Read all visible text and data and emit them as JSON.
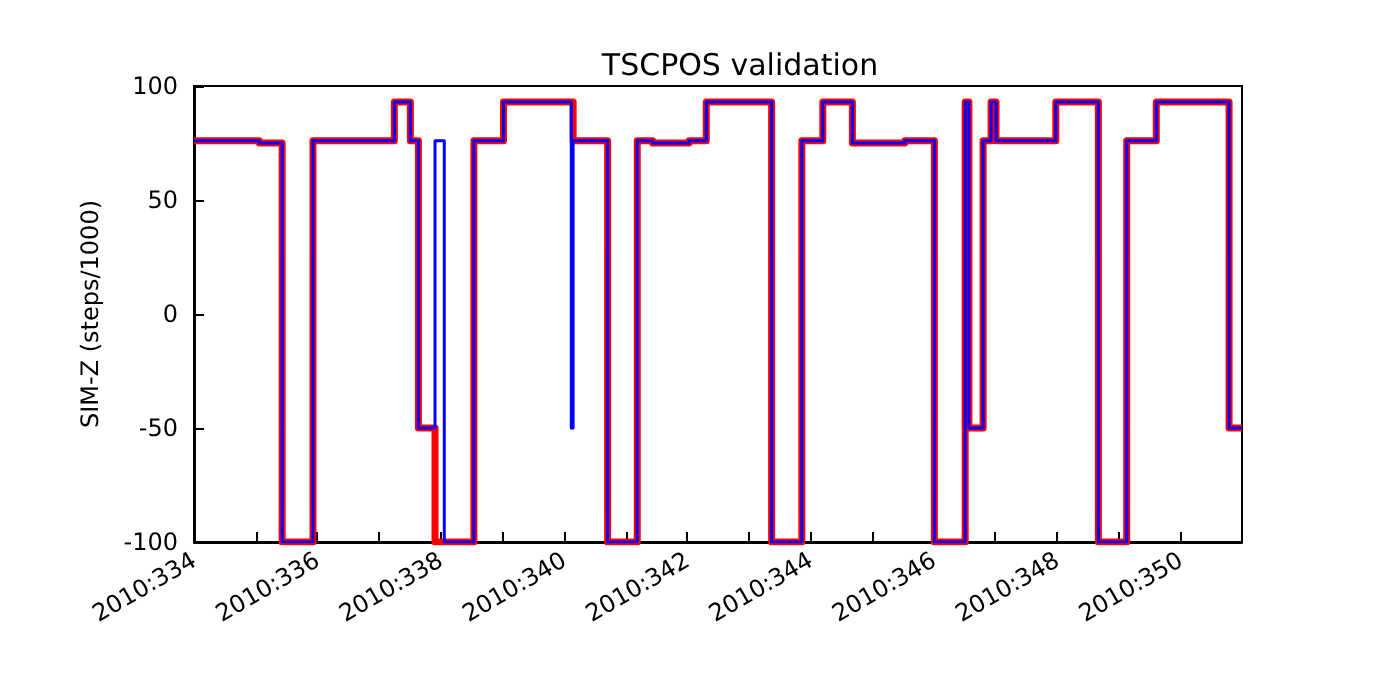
{
  "chart_data": {
    "type": "step",
    "title": "TSCPOS validation",
    "ylabel": "SIM-Z (steps/1000)",
    "xlim": [
      "2010-11-30",
      "2010-12-17"
    ],
    "ylim": [
      -100,
      100
    ],
    "xticks": [
      {
        "value": "2010-11-30",
        "label": "2010:334"
      },
      {
        "value": "2010-12-01",
        "label": null
      },
      {
        "value": "2010-12-02",
        "label": "2010:336"
      },
      {
        "value": "2010-12-03",
        "label": null
      },
      {
        "value": "2010-12-04",
        "label": "2010:338"
      },
      {
        "value": "2010-12-05",
        "label": null
      },
      {
        "value": "2010-12-06",
        "label": "2010:340"
      },
      {
        "value": "2010-12-07",
        "label": null
      },
      {
        "value": "2010-12-08",
        "label": "2010:342"
      },
      {
        "value": "2010-12-09",
        "label": null
      },
      {
        "value": "2010-12-10",
        "label": "2010:344"
      },
      {
        "value": "2010-12-11",
        "label": null
      },
      {
        "value": "2010-12-12",
        "label": "2010:346"
      },
      {
        "value": "2010-12-13",
        "label": null
      },
      {
        "value": "2010-12-14",
        "label": "2010:348"
      },
      {
        "value": "2010-12-15",
        "label": null
      },
      {
        "value": "2010-12-16",
        "label": "2010:350"
      }
    ],
    "yticks": [
      -100,
      -50,
      0,
      50,
      100
    ],
    "grid": false,
    "series": [
      {
        "color": "#ff0000",
        "x": [
          "2010-11-30T00:00",
          "2010-12-01T01:26",
          "2010-12-01T10:19",
          "2010-12-01T22:19",
          "2010-12-03T06:00",
          "2010-12-03T12:14",
          "2010-12-03T15:22",
          "2010-12-03T21:50",
          "2010-12-04T12:58",
          "2010-12-05T00:29",
          "2010-12-06T03:36",
          "2010-12-06T17:02",
          "2010-12-07T04:34",
          "2010-12-07T10:34",
          "2010-12-08T00:43",
          "2010-12-08T07:26",
          "2010-12-09T08:53",
          "2010-12-09T20:38",
          "2010-12-10T04:48",
          "2010-12-10T16:19",
          "2010-12-11T12:43",
          "2010-12-12T00:14",
          "2010-12-12T12:14",
          "2010-12-12T13:41",
          "2010-12-12T19:12",
          "2010-12-12T22:19",
          "2010-12-13T00:14",
          "2010-12-13T23:31",
          "2010-12-14T16:05",
          "2010-12-15T03:07",
          "2010-12-15T14:38",
          "2010-12-16T18:58",
          "2010-12-17T00:00"
        ],
        "values": [
          76,
          75,
          -100,
          76,
          93,
          76,
          -50,
          -100,
          76,
          93,
          76,
          -100,
          76,
          75,
          76,
          93,
          -100,
          76,
          93,
          75,
          76,
          -100,
          93,
          -50,
          76,
          93,
          76,
          93,
          -100,
          76,
          93,
          -50,
          -50
        ]
      },
      {
        "color": "#0000ff",
        "x": [
          "2010-11-30T00:00",
          "2010-12-01T01:26",
          "2010-12-01T10:19",
          "2010-12-01T22:19",
          "2010-12-03T06:00",
          "2010-12-03T12:14",
          "2010-12-03T15:22",
          "2010-12-03T21:50",
          "2010-12-04T01:26",
          "2010-12-04T12:58",
          "2010-12-05T00:29",
          "2010-12-06T02:53",
          "2010-12-06T03:36",
          "2010-12-06T17:02",
          "2010-12-07T04:34",
          "2010-12-07T10:34",
          "2010-12-08T00:43",
          "2010-12-08T07:26",
          "2010-12-09T08:53",
          "2010-12-09T20:38",
          "2010-12-10T04:48",
          "2010-12-10T16:19",
          "2010-12-11T12:43",
          "2010-12-12T00:14",
          "2010-12-12T12:14",
          "2010-12-12T13:41",
          "2010-12-12T19:12",
          "2010-12-12T22:19",
          "2010-12-13T00:14",
          "2010-12-13T23:31",
          "2010-12-14T16:05",
          "2010-12-15T03:07",
          "2010-12-15T14:38",
          "2010-12-16T18:58",
          "2010-12-17T00:00"
        ],
        "values": [
          76,
          75,
          -100,
          76,
          93,
          76,
          -50,
          76,
          -100,
          76,
          93,
          -50,
          76,
          -100,
          76,
          75,
          76,
          93,
          -100,
          76,
          93,
          75,
          76,
          -100,
          93,
          -50,
          76,
          93,
          76,
          93,
          -100,
          76,
          93,
          -50,
          -50
        ]
      }
    ]
  }
}
